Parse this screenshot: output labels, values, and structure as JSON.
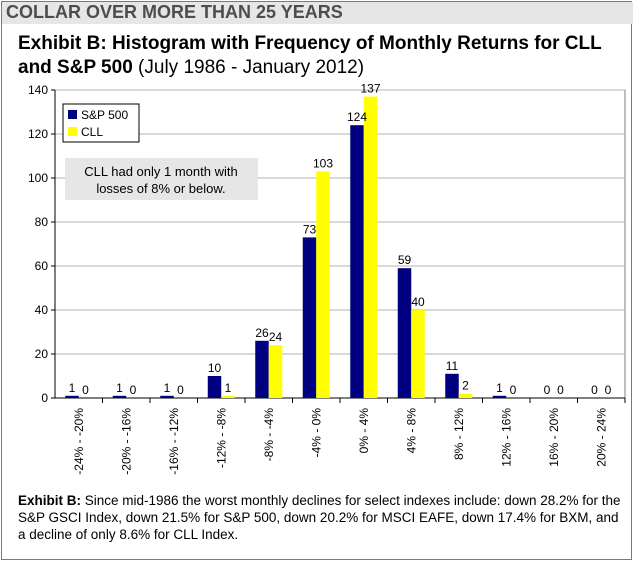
{
  "banner": "COLLAR OVER MORE THAN 25 YEARS",
  "title": {
    "bold": "Exhibit B: Histogram with Frequency of Monthly Returns for CLL and S&P 500",
    "normal": " (July 1986 - January 2012)"
  },
  "caption": {
    "bold": "Exhibit B:",
    "text": " Since mid-1986 the worst monthly declines for select indexes include: down 28.2% for the S&P GSCI Index, down 21.5% for S&P 500, down 20.2% for MSCI EAFE, down 17.4% for BXM, and a decline of only 8.6% for CLL Index."
  },
  "chart_data": {
    "type": "bar",
    "categories": [
      "-24% - -20%",
      "-20% - -16%",
      "-16% - -12%",
      "-12% - -8%",
      "-8% - -4%",
      "-4% - 0%",
      "0% - 4%",
      "4% - 8%",
      "8% - 12%",
      "12% - 16%",
      "16% - 20%",
      "20% - 24%"
    ],
    "series": [
      {
        "name": "S&P 500",
        "color": "#000080",
        "values": [
          1,
          1,
          1,
          10,
          26,
          73,
          124,
          59,
          11,
          1,
          0,
          0
        ]
      },
      {
        "name": "CLL",
        "color": "#ffff00",
        "values": [
          0,
          0,
          0,
          1,
          24,
          103,
          137,
          40,
          2,
          0,
          0,
          0
        ]
      }
    ],
    "ylim": [
      0,
      140
    ],
    "yticks": [
      0,
      20,
      40,
      60,
      80,
      100,
      120,
      140
    ],
    "grid": true,
    "legend_position": "top-left",
    "annotation": "CLL had only 1 month with losses of 8% or below.",
    "annotation_lines": [
      "CLL had only 1 month with",
      "losses of 8% or below."
    ]
  }
}
